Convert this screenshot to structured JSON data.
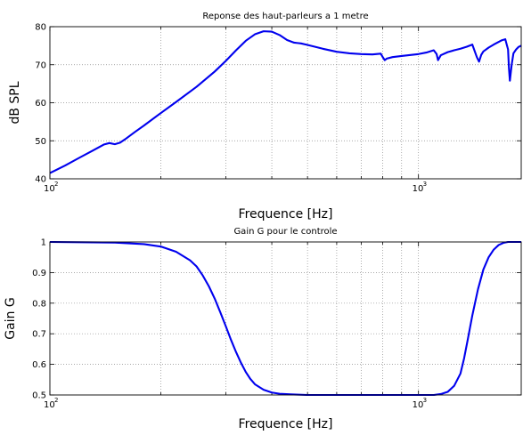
{
  "colors": {
    "line": "#0000ee",
    "axis": "#000000",
    "grid": "#8c8c8c"
  },
  "chart_data": [
    {
      "type": "line",
      "title": "Reponse des haut-parleurs a 1 metre",
      "xlabel": "Frequence [Hz]",
      "ylabel": "dB SPL",
      "xscale": "log",
      "xlim": [
        100,
        1900
      ],
      "ylim": [
        40,
        80
      ],
      "yticks": [
        40,
        50,
        60,
        70,
        80
      ],
      "xtick_labels": [
        {
          "value": 100,
          "base": "10",
          "exp": "2"
        },
        {
          "value": 1000,
          "base": "10",
          "exp": "3"
        }
      ],
      "grid": true,
      "series": [
        {
          "x": [
            100,
            110,
            120,
            130,
            140,
            145,
            150,
            155,
            160,
            170,
            180,
            200,
            220,
            250,
            280,
            300,
            320,
            340,
            360,
            380,
            400,
            420,
            440,
            460,
            470,
            480,
            500,
            550,
            600,
            650,
            700,
            750,
            790,
            800,
            810,
            820,
            850,
            900,
            1000,
            1050,
            1100,
            1120,
            1130,
            1150,
            1200,
            1250,
            1300,
            1350,
            1400,
            1440,
            1460,
            1480,
            1500,
            1550,
            1600,
            1680,
            1720,
            1750,
            1760,
            1770,
            1790,
            1810,
            1840,
            1870,
            1900
          ],
          "y": [
            41.5,
            43.5,
            45.5,
            47.3,
            49.0,
            49.4,
            49.1,
            49.5,
            50.4,
            52.3,
            54.0,
            57.3,
            60.2,
            64.2,
            68.2,
            71.0,
            73.8,
            76.3,
            78.0,
            78.8,
            78.7,
            77.8,
            76.5,
            75.8,
            75.7,
            75.6,
            75.2,
            74.2,
            73.4,
            73.0,
            72.8,
            72.7,
            72.9,
            72.0,
            71.2,
            71.6,
            72.0,
            72.3,
            72.8,
            73.2,
            73.8,
            72.8,
            71.2,
            72.5,
            73.3,
            73.8,
            74.2,
            74.7,
            75.3,
            72.0,
            70.8,
            72.6,
            73.5,
            74.5,
            75.3,
            76.4,
            76.7,
            74.0,
            69.0,
            65.8,
            70.0,
            73.0,
            74.0,
            74.7,
            75.0
          ]
        }
      ]
    },
    {
      "type": "line",
      "title": "Gain G pour le controle",
      "xlabel": "Frequence [Hz]",
      "ylabel": "Gain G",
      "xscale": "log",
      "xlim": [
        100,
        1900
      ],
      "ylim": [
        0.5,
        1.0
      ],
      "yticks": [
        0.5,
        0.6,
        0.7,
        0.8,
        0.9,
        1
      ],
      "xtick_labels": [
        {
          "value": 100,
          "base": "10",
          "exp": "2"
        },
        {
          "value": 1000,
          "base": "10",
          "exp": "3"
        }
      ],
      "grid": true,
      "series": [
        {
          "x": [
            100,
            150,
            180,
            200,
            220,
            240,
            250,
            260,
            270,
            280,
            290,
            300,
            310,
            320,
            330,
            340,
            350,
            360,
            380,
            400,
            420,
            450,
            500,
            600,
            800,
            1000,
            1100,
            1150,
            1200,
            1250,
            1300,
            1330,
            1360,
            1400,
            1450,
            1500,
            1550,
            1600,
            1650,
            1700,
            1750,
            1800,
            1850,
            1900
          ],
          "y": [
            1.0,
            0.998,
            0.993,
            0.985,
            0.968,
            0.94,
            0.92,
            0.89,
            0.855,
            0.815,
            0.77,
            0.725,
            0.68,
            0.64,
            0.605,
            0.575,
            0.552,
            0.535,
            0.517,
            0.508,
            0.504,
            0.502,
            0.5,
            0.5,
            0.5,
            0.5,
            0.5,
            0.503,
            0.51,
            0.53,
            0.57,
            0.62,
            0.68,
            0.76,
            0.845,
            0.91,
            0.95,
            0.975,
            0.99,
            0.997,
            1.0,
            1.0,
            1.0,
            1.0
          ]
        }
      ]
    }
  ]
}
